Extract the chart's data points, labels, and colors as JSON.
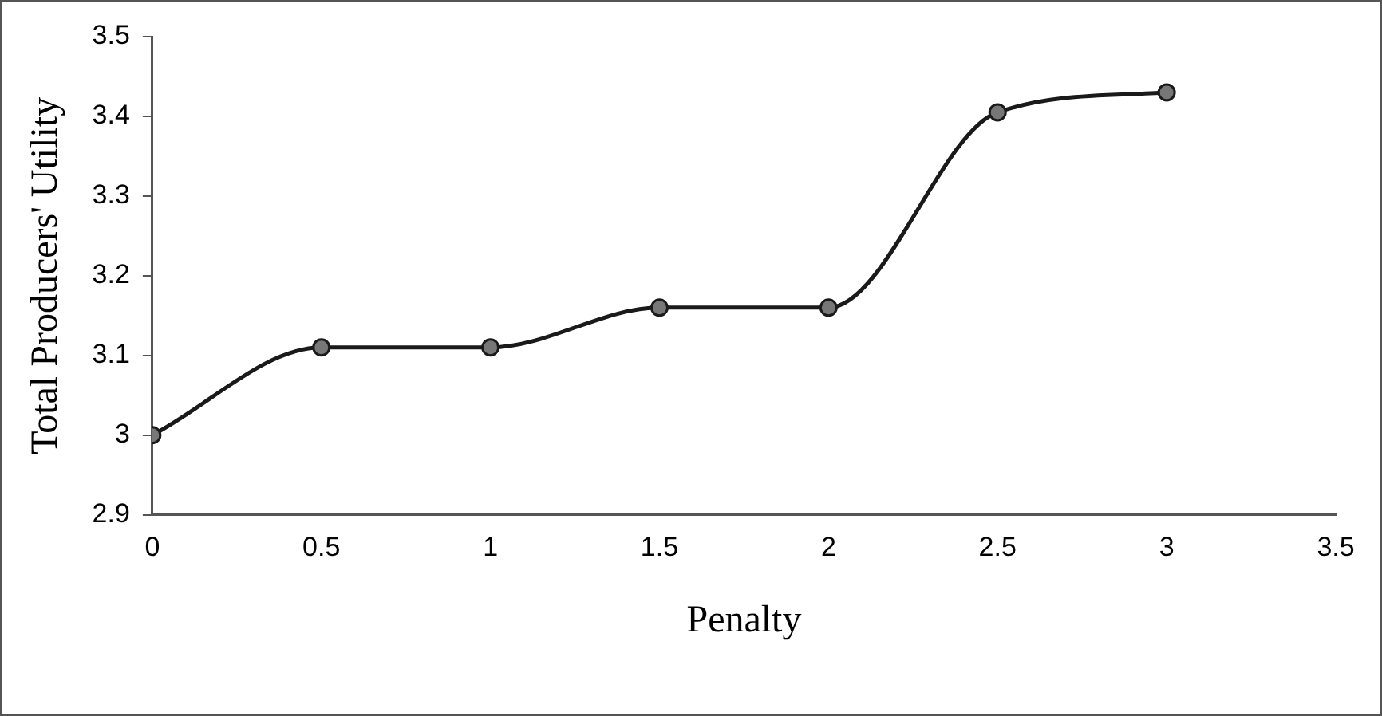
{
  "chart_data": {
    "type": "line",
    "xlabel": "Penalty",
    "ylabel": "Total Producers' Utility",
    "x": [
      0,
      0.5,
      1,
      1.5,
      2,
      2.5,
      3
    ],
    "series": [
      {
        "color": "#1a1a1a",
        "values": [
          3.0,
          3.11,
          3.11,
          3.16,
          3.16,
          3.405,
          3.43
        ]
      }
    ],
    "xlim": [
      0,
      3.5
    ],
    "xticks": [
      0,
      0.5,
      1,
      1.5,
      2,
      2.5,
      3,
      3.5
    ],
    "ylim": [
      2.9,
      3.5
    ],
    "yticks": [
      2.9,
      3,
      3.1,
      3.2,
      3.3,
      3.4,
      3.5
    ],
    "grid": false,
    "legend": false,
    "marker": "circle",
    "line_style": "solid"
  }
}
